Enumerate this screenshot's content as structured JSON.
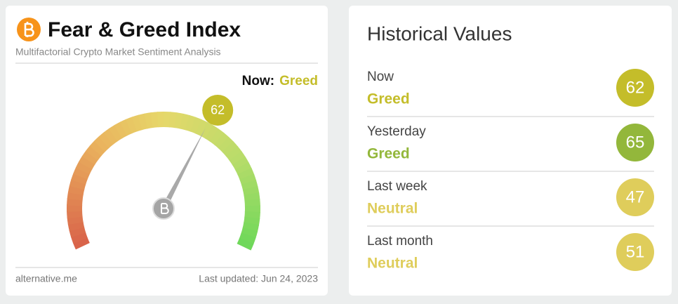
{
  "gauge": {
    "title": "Fear & Greed Index",
    "subtitle": "Multifactorial Crypto Market Sentiment Analysis",
    "now_label": "Now:",
    "now_status": "Greed",
    "value": 62,
    "color": "#c4bd2a",
    "footer_left": "alternative.me",
    "footer_right": "Last updated: Jun 24, 2023"
  },
  "history": {
    "title": "Historical Values",
    "rows": [
      {
        "label": "Now",
        "status": "Greed",
        "value": 62,
        "color": "#c4bd2a"
      },
      {
        "label": "Yesterday",
        "status": "Greed",
        "value": 65,
        "color": "#93b73b"
      },
      {
        "label": "Last week",
        "status": "Neutral",
        "value": 47,
        "color": "#dfcd5b"
      },
      {
        "label": "Last month",
        "status": "Neutral",
        "value": 51,
        "color": "#dfcd5b"
      }
    ]
  }
}
